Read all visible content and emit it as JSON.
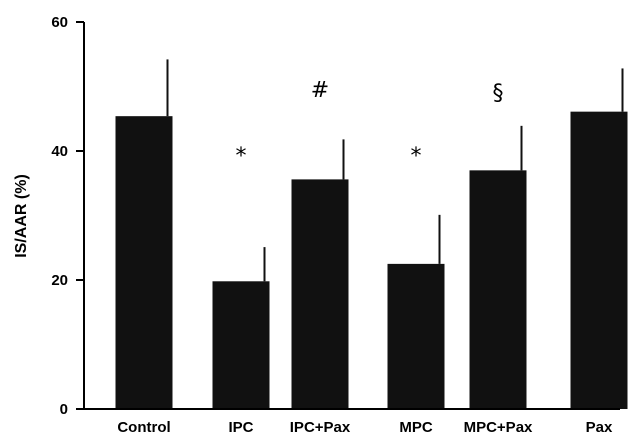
{
  "chart_data": {
    "type": "bar",
    "title": "",
    "xlabel": "",
    "ylabel": "IS/AAR (%)",
    "ylim": [
      0,
      60
    ],
    "yticks": [
      0,
      20,
      40,
      60
    ],
    "grid": false,
    "categories": [
      "Control",
      "IPC",
      "IPC+Pax",
      "MPC",
      "MPC+Pax",
      "Pax"
    ],
    "values": [
      45.4,
      19.8,
      35.6,
      22.5,
      37.0,
      46.1
    ],
    "errors": [
      8.8,
      5.3,
      6.2,
      7.6,
      6.9,
      6.7
    ],
    "annotations": [
      "",
      "*",
      "#",
      "*",
      "§",
      ""
    ],
    "colors": {
      "bar": "#111111",
      "axis": "#000000"
    }
  }
}
